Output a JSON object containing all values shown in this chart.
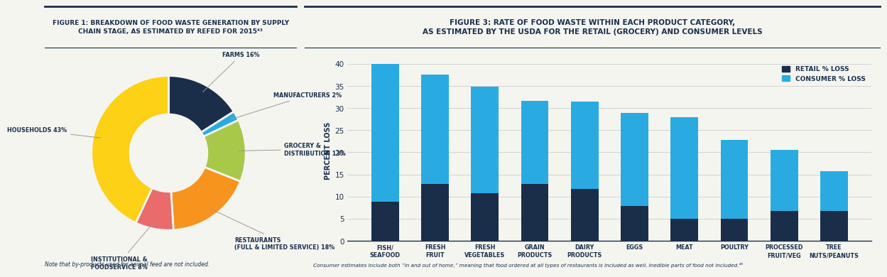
{
  "fig1_title": "FIGURE 1: BREAKDOWN OF FOOD WASTE GENERATION BY SUPPLY\nCHAIN STAGE, AS ESTIMATED BY REFED FOR 2015⁴³",
  "donut_labels": [
    "FARMS 16%",
    "MANUFACTURERS 2%",
    "GROCERY &\nDISTRIBUTION 13%",
    "RESTAURANTS\n(FULL & LIMITED SERVICE) 18%",
    "INSTITUTIONAL &\nFOODSERVICE 8%",
    "HOUSEHOLDS 43%"
  ],
  "donut_values": [
    16,
    2,
    13,
    18,
    8,
    43
  ],
  "donut_colors": [
    "#1a2e4a",
    "#29abe2",
    "#a8c84a",
    "#f7941d",
    "#e96b6b",
    "#fcd116"
  ],
  "fig1_note": "Note that by-products used for animal feed are not included.",
  "fig3_title": "FIGURE 3: RATE OF FOOD WASTE WITHIN EACH PRODUCT CATEGORY,\nAS ESTIMATED BY THE USDA FOR THE RETAIL (GROCERY) AND CONSUMER LEVELS",
  "bar_categories": [
    "FISH/\nSEAFOOD",
    "FRESH\nFRUIT",
    "FRESH\nVEGETABLES",
    "GRAIN\nPRODUCTS",
    "DAIRY\nPRODUCTS",
    "EGGS",
    "MEAT",
    "POULTRY",
    "PROCESSED\nFRUIT/VEG",
    "TREE\nNUTS/PEANUTS"
  ],
  "retail_values": [
    8.8,
    12.9,
    10.8,
    12.9,
    11.7,
    7.9,
    4.9,
    4.9,
    6.8,
    6.8
  ],
  "consumer_values": [
    31.1,
    24.6,
    24.1,
    18.7,
    19.8,
    21.0,
    23.1,
    17.9,
    13.7,
    9.0
  ],
  "retail_color": "#1a2e4a",
  "consumer_color": "#29abe2",
  "bar_ylabel": "PERCENT LOSS",
  "bar_ylim": [
    0,
    41
  ],
  "bar_yticks": [
    0,
    5,
    10,
    15,
    20,
    25,
    30,
    35,
    40
  ],
  "fig3_note": "Consumer estimates include both “in and out of home,” meaning that food ordered at all types of restaurants is included as well. Inedible parts of food not included.⁴⁵",
  "legend_retail": "RETAIL % LOSS",
  "legend_consumer": "CONSUMER % LOSS",
  "background_color": "#f5f5f0",
  "title_color": "#1a2e4a",
  "divider_color": "#1a2e4a",
  "note_color": "#1a2e4a",
  "grid_color": "#cccccc"
}
